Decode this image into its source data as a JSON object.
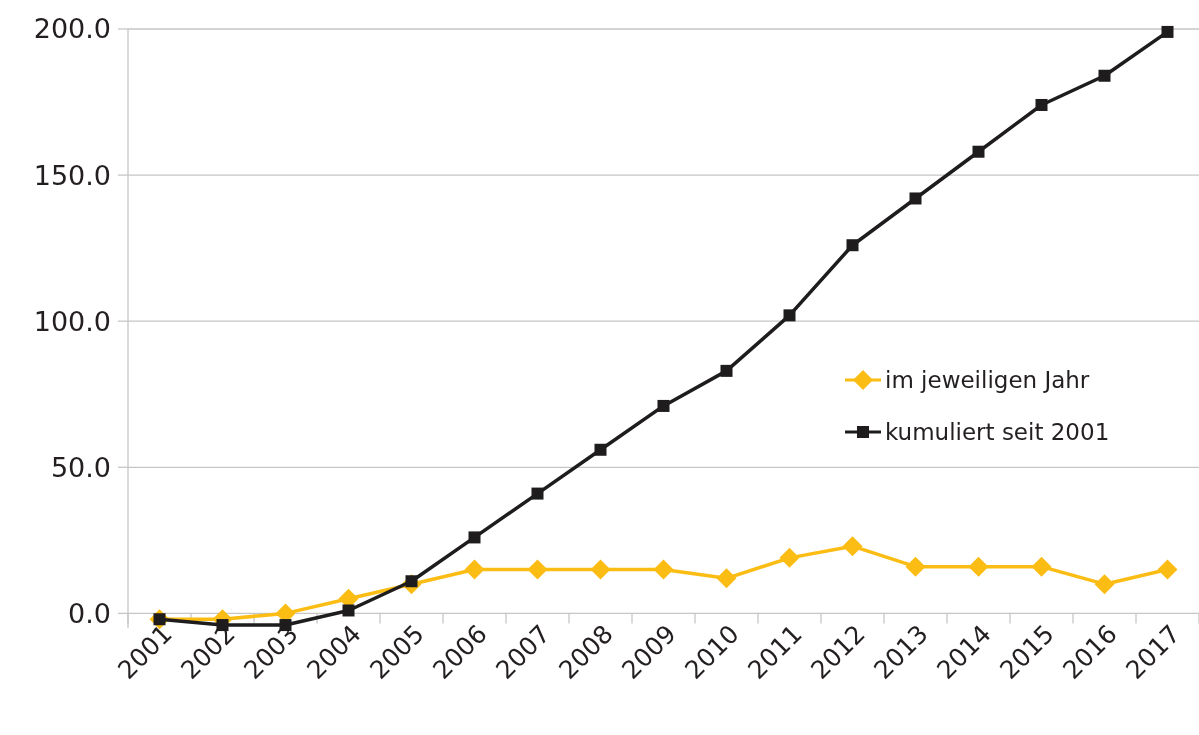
{
  "chart_data": {
    "type": "line",
    "categories": [
      "2001",
      "2002",
      "2003",
      "2004",
      "2005",
      "2006",
      "2007",
      "2008",
      "2009",
      "2010",
      "2011",
      "2012",
      "2013",
      "2014",
      "2015",
      "2016",
      "2017"
    ],
    "series": [
      {
        "name": "im jeweiligen Jahr",
        "color": "#fbbc13",
        "marker": "diamond",
        "values": [
          -2,
          -2,
          0,
          5,
          10,
          15,
          15,
          15,
          15,
          12,
          19,
          23,
          16,
          16,
          16,
          10,
          15
        ]
      },
      {
        "name": "kumuliert seit 2001",
        "color": "#1e1c1d",
        "marker": "square",
        "values": [
          -2,
          -4,
          -4,
          1,
          11,
          26,
          41,
          56,
          71,
          83,
          102,
          126,
          142,
          158,
          174,
          184,
          199
        ]
      }
    ],
    "ylim": [
      -5,
      200
    ],
    "yticks": [
      {
        "value": 0,
        "label": "0.0"
      },
      {
        "value": 50,
        "label": "50.0"
      },
      {
        "value": 100,
        "label": "100.0"
      },
      {
        "value": 150,
        "label": "150.0"
      },
      {
        "value": 200,
        "label": "200.0"
      }
    ],
    "grid": "y",
    "legend": "right",
    "line_style": "solid"
  }
}
